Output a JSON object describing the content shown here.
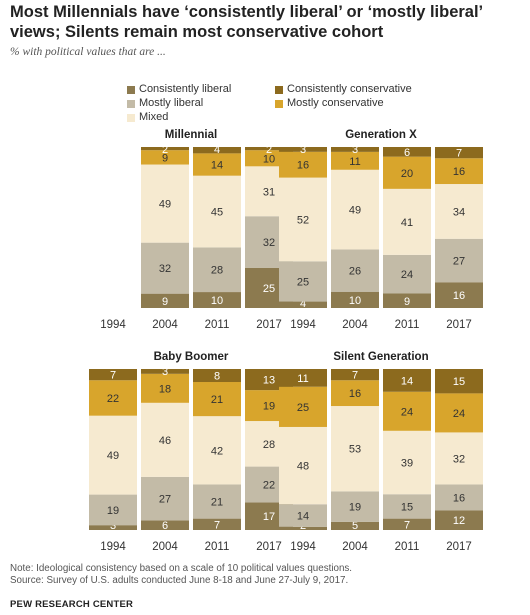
{
  "title": "Most Millennials have ‘consistently liberal’ or ‘mostly liberal’ views; Silents remain most conservative cohort",
  "subtitle": "% with political values that are ...",
  "legend": [
    {
      "label": "Consistently liberal",
      "color": "#8c7a4f"
    },
    {
      "label": "Mostly liberal",
      "color": "#c3bba7"
    },
    {
      "label": "Mixed",
      "color": "#f6ead0"
    },
    {
      "label": "Consistently conservative",
      "color": "#8c6a1e"
    },
    {
      "label": "Mostly conservative",
      "color": "#d8a52c"
    }
  ],
  "chart_data": [
    {
      "type": "bar",
      "stacked": true,
      "title": "Millennial",
      "categories": [
        "1994",
        "2004",
        "2011",
        "2017"
      ],
      "series": [
        {
          "name": "Consistently liberal",
          "values": [
            null,
            9,
            10,
            25
          ]
        },
        {
          "name": "Mostly liberal",
          "values": [
            null,
            32,
            28,
            32
          ]
        },
        {
          "name": "Mixed",
          "values": [
            null,
            49,
            45,
            31
          ]
        },
        {
          "name": "Mostly conservative",
          "values": [
            null,
            9,
            14,
            10
          ]
        },
        {
          "name": "Consistently conservative",
          "values": [
            null,
            2,
            4,
            2
          ]
        }
      ]
    },
    {
      "type": "bar",
      "stacked": true,
      "title": "Generation X",
      "categories": [
        "1994",
        "2004",
        "2011",
        "2017"
      ],
      "series": [
        {
          "name": "Consistently liberal",
          "values": [
            4,
            10,
            9,
            16
          ]
        },
        {
          "name": "Mostly liberal",
          "values": [
            25,
            26,
            24,
            27
          ]
        },
        {
          "name": "Mixed",
          "values": [
            52,
            49,
            41,
            34
          ]
        },
        {
          "name": "Mostly conservative",
          "values": [
            16,
            11,
            20,
            16
          ]
        },
        {
          "name": "Consistently conservative",
          "values": [
            3,
            3,
            6,
            7
          ]
        }
      ]
    },
    {
      "type": "bar",
      "stacked": true,
      "title": "Baby Boomer",
      "categories": [
        "1994",
        "2004",
        "2011",
        "2017"
      ],
      "series": [
        {
          "name": "Consistently liberal",
          "values": [
            3,
            6,
            7,
            17
          ]
        },
        {
          "name": "Mostly liberal",
          "values": [
            19,
            27,
            21,
            22
          ]
        },
        {
          "name": "Mixed",
          "values": [
            49,
            46,
            42,
            28
          ]
        },
        {
          "name": "Mostly conservative",
          "values": [
            22,
            18,
            21,
            19
          ]
        },
        {
          "name": "Consistently conservative",
          "values": [
            7,
            3,
            8,
            13
          ]
        }
      ]
    },
    {
      "type": "bar",
      "stacked": true,
      "title": "Silent Generation",
      "categories": [
        "1994",
        "2004",
        "2011",
        "2017"
      ],
      "series": [
        {
          "name": "Consistently liberal",
          "values": [
            2,
            5,
            7,
            12
          ]
        },
        {
          "name": "Mostly liberal",
          "values": [
            14,
            19,
            15,
            16
          ]
        },
        {
          "name": "Mixed",
          "values": [
            48,
            53,
            39,
            32
          ]
        },
        {
          "name": "Mostly conservative",
          "values": [
            25,
            16,
            24,
            24
          ]
        },
        {
          "name": "Consistently conservative",
          "values": [
            11,
            7,
            14,
            15
          ]
        }
      ]
    }
  ],
  "note": "Note: Ideological consistency based on a scale of 10 political values questions.",
  "source": "Source: Survey of U.S. adults conducted June 8-18 and June 27-July 9, 2017.",
  "org": "PEW RESEARCH CENTER"
}
